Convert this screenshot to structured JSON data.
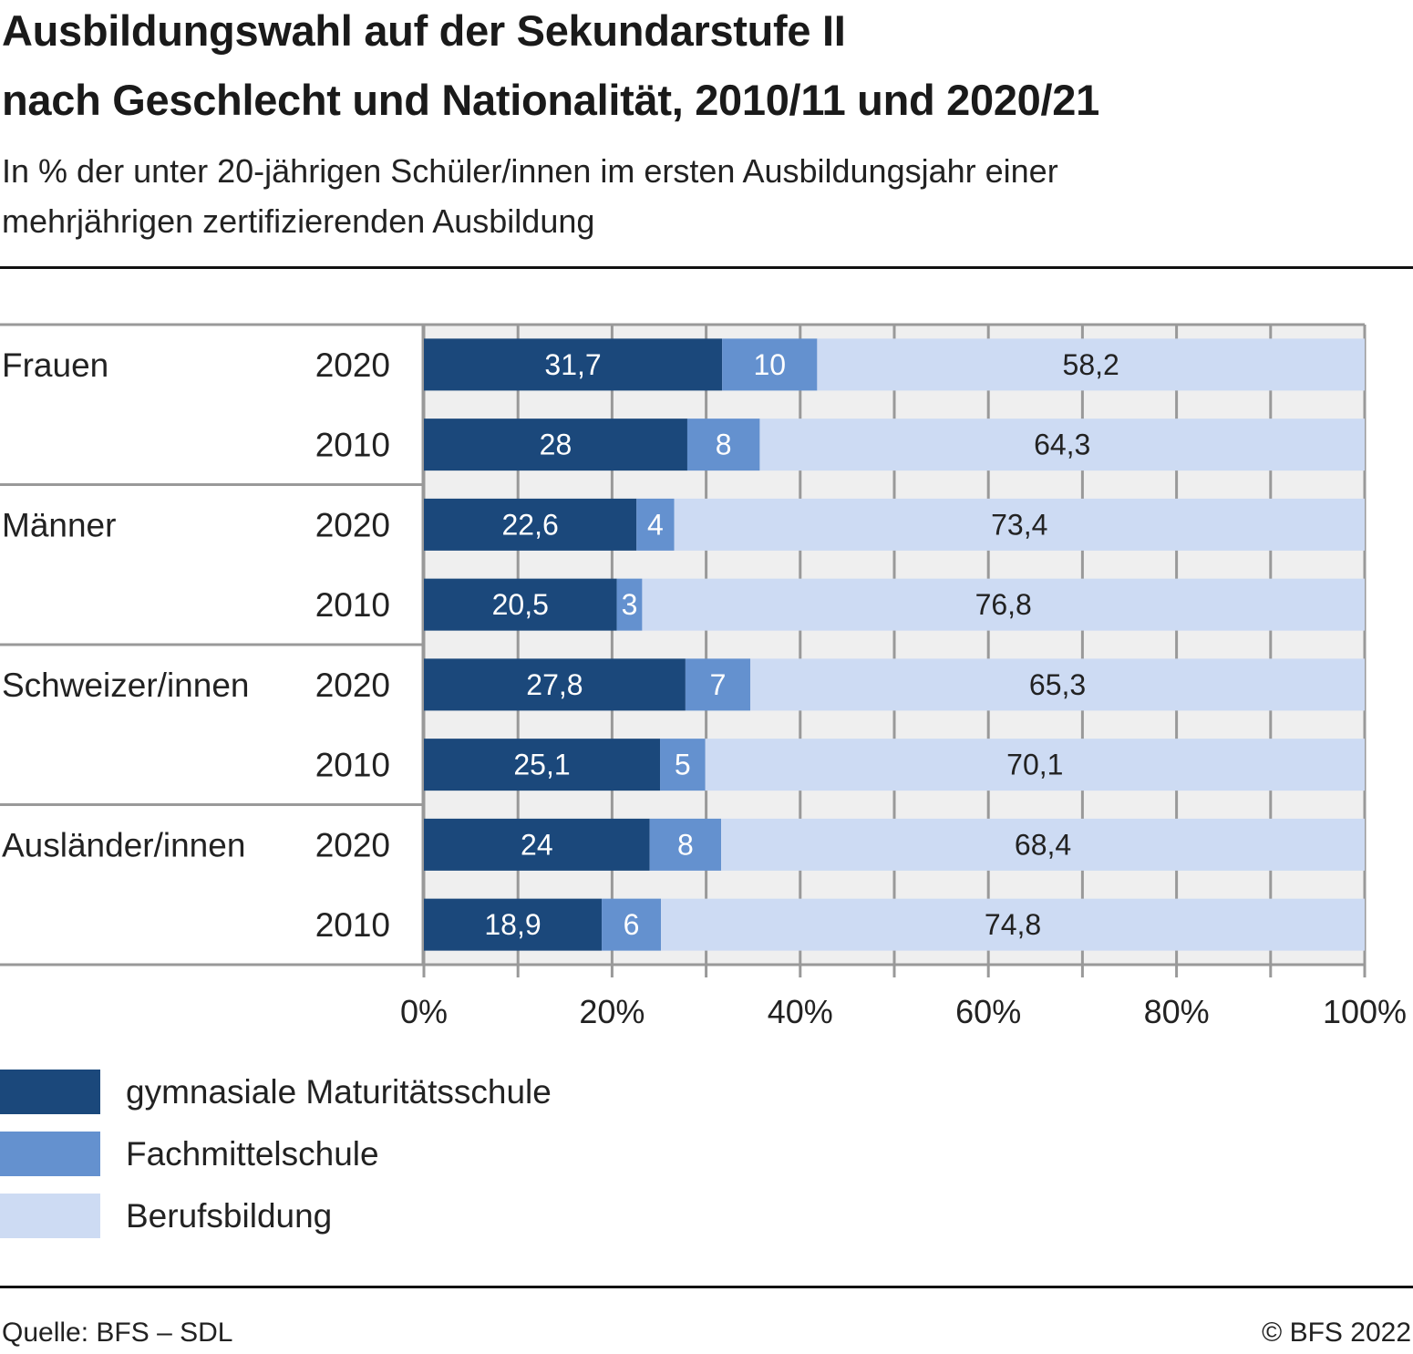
{
  "header": {
    "title_line1": "Ausbildungswahl auf der Sekundarstufe II",
    "title_line2": "nach Geschlecht und Nationalität, 2010/11 und 2020/21",
    "subtitle_line1": "In % der unter 20-jährigen Schüler/innen im ersten Ausbildungsjahr einer",
    "subtitle_line2": "mehrjährigen zertifizierenden Ausbildung"
  },
  "footer": {
    "source": "Quelle: BFS – SDL",
    "copyright": "© BFS 2022"
  },
  "chart_data": {
    "type": "bar",
    "orientation": "horizontal",
    "stacked": true,
    "title": "Ausbildungswahl auf der Sekundarstufe II nach Geschlecht und Nationalität, 2010/11 und 2020/21",
    "subtitle": "In % der unter 20-jährigen Schüler/innen im ersten Ausbildungsjahr einer mehrjährigen zertifizierenden Ausbildung",
    "xlabel": "",
    "ylabel": "",
    "xlim": [
      0,
      100
    ],
    "x_ticks": [
      "0%",
      "20%",
      "40%",
      "60%",
      "80%",
      "100%"
    ],
    "x_tick_values": [
      0,
      20,
      40,
      60,
      80,
      100
    ],
    "x_minor_tick_values": [
      10,
      30,
      50,
      70,
      90
    ],
    "grid": true,
    "legend_position": "bottom-left",
    "groups": [
      {
        "label": "Frauen",
        "rows": [
          {
            "year": "2020",
            "values": [
              31.7,
              10.1,
              58.2
            ],
            "labels": [
              "31,7",
              "10",
              "58,2"
            ]
          },
          {
            "year": "2010",
            "values": [
              28.0,
              7.7,
              64.3
            ],
            "labels": [
              "28",
              "8",
              "64,3"
            ]
          }
        ]
      },
      {
        "label": "Männer",
        "rows": [
          {
            "year": "2020",
            "values": [
              22.6,
              4.0,
              73.4
            ],
            "labels": [
              "22,6",
              "4",
              "73,4"
            ]
          },
          {
            "year": "2010",
            "values": [
              20.5,
              2.7,
              76.8
            ],
            "labels": [
              "20,5",
              "3",
              "76,8"
            ]
          }
        ]
      },
      {
        "label": "Schweizer/innen",
        "rows": [
          {
            "year": "2020",
            "values": [
              27.8,
              6.9,
              65.3
            ],
            "labels": [
              "27,8",
              "7",
              "65,3"
            ]
          },
          {
            "year": "2010",
            "values": [
              25.1,
              4.8,
              70.1
            ],
            "labels": [
              "25,1",
              "5",
              "70,1"
            ]
          }
        ]
      },
      {
        "label": "Ausländer/innen",
        "rows": [
          {
            "year": "2020",
            "values": [
              24.0,
              7.6,
              68.4
            ],
            "labels": [
              "24",
              "8",
              "68,4"
            ]
          },
          {
            "year": "2010",
            "values": [
              18.9,
              6.3,
              74.8
            ],
            "labels": [
              "18,9",
              "6",
              "74,8"
            ]
          }
        ]
      }
    ],
    "series": [
      {
        "name": "gymnasiale Maturitätsschule",
        "color": "#1b487b",
        "label_color": "#ffffff"
      },
      {
        "name": "Fachmittelschule",
        "color": "#6491cf",
        "label_color": "#ffffff"
      },
      {
        "name": "Berufsbildung",
        "color": "#cddbf3",
        "label_color": "#222222"
      }
    ],
    "plot_background": "#efefef",
    "grid_color": "#999999"
  }
}
